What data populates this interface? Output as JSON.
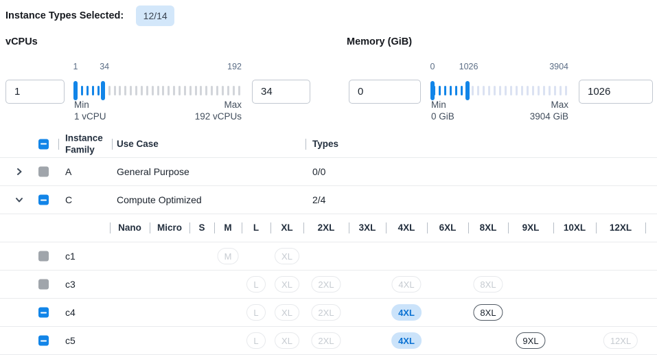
{
  "header": {
    "label": "Instance Types Selected:",
    "badge": "12/14"
  },
  "filters": {
    "vcpus": {
      "title": "vCPUs",
      "low_value": "1",
      "high_value": "34",
      "range": {
        "min": 1,
        "max": 192,
        "low": 1,
        "high": 34
      },
      "scale": {
        "low": "1",
        "high": "34",
        "max": "192"
      },
      "min_label": "Min",
      "min_detail": "1 vCPU",
      "max_label": "Max",
      "max_detail": "192 vCPUs"
    },
    "memory": {
      "title": "Memory (GiB)",
      "low_value": "0",
      "high_value": "1026",
      "range": {
        "min": 0,
        "max": 3904,
        "low": 0,
        "high": 1026
      },
      "scale": {
        "low": "0",
        "high": "1026",
        "max": "3904"
      },
      "min_label": "Min",
      "min_detail": "0 GiB",
      "max_label": "Max",
      "max_detail": "3904 GiB"
    }
  },
  "table": {
    "columns": {
      "family": "Instance Family",
      "use_case": "Use Case",
      "types": "Types"
    },
    "header_checkbox": "indeterminate",
    "family_rows": [
      {
        "expand": "collapsed",
        "checkbox": "disabled",
        "family": "A",
        "use_case": "General Purpose",
        "types": "0/0"
      },
      {
        "expand": "expanded",
        "checkbox": "indeterminate",
        "family": "C",
        "use_case": "Compute Optimized",
        "types": "2/4"
      }
    ],
    "sizes": [
      "Nano",
      "Micro",
      "S",
      "M",
      "L",
      "XL",
      "2XL",
      "3XL",
      "4XL",
      "6XL",
      "8XL",
      "9XL",
      "10XL",
      "12XL"
    ],
    "instance_rows": [
      {
        "name": "c1",
        "checkbox": "disabled",
        "chips": [
          {
            "size": "M",
            "state": "disabled"
          },
          {
            "size": "XL",
            "state": "disabled"
          }
        ]
      },
      {
        "name": "c3",
        "checkbox": "disabled",
        "chips": [
          {
            "size": "L",
            "state": "disabled"
          },
          {
            "size": "XL",
            "state": "disabled"
          },
          {
            "size": "2XL",
            "state": "disabled"
          },
          {
            "size": "4XL",
            "state": "disabled"
          },
          {
            "size": "8XL",
            "state": "disabled"
          }
        ]
      },
      {
        "name": "c4",
        "checkbox": "indeterminate",
        "chips": [
          {
            "size": "L",
            "state": "disabled"
          },
          {
            "size": "XL",
            "state": "disabled"
          },
          {
            "size": "2XL",
            "state": "disabled"
          },
          {
            "size": "4XL",
            "state": "selected"
          },
          {
            "size": "8XL",
            "state": "enabled"
          }
        ]
      },
      {
        "name": "c5",
        "checkbox": "indeterminate",
        "chips": [
          {
            "size": "L",
            "state": "disabled"
          },
          {
            "size": "XL",
            "state": "disabled"
          },
          {
            "size": "2XL",
            "state": "disabled"
          },
          {
            "size": "4XL",
            "state": "selected"
          },
          {
            "size": "9XL",
            "state": "enabled"
          },
          {
            "size": "12XL",
            "state": "disabled"
          }
        ]
      }
    ]
  },
  "colors": {
    "accent": "#1285e8",
    "badge_bg": "#d3e7fa",
    "chip_selected_bg": "#cbe3fa",
    "chip_selected_text": "#0b72d3",
    "inactive_tick_vcpus": "#d2d5da",
    "inactive_tick_memory": "#dbe2f2",
    "disabled_checkbox": "#a0a5ab"
  }
}
